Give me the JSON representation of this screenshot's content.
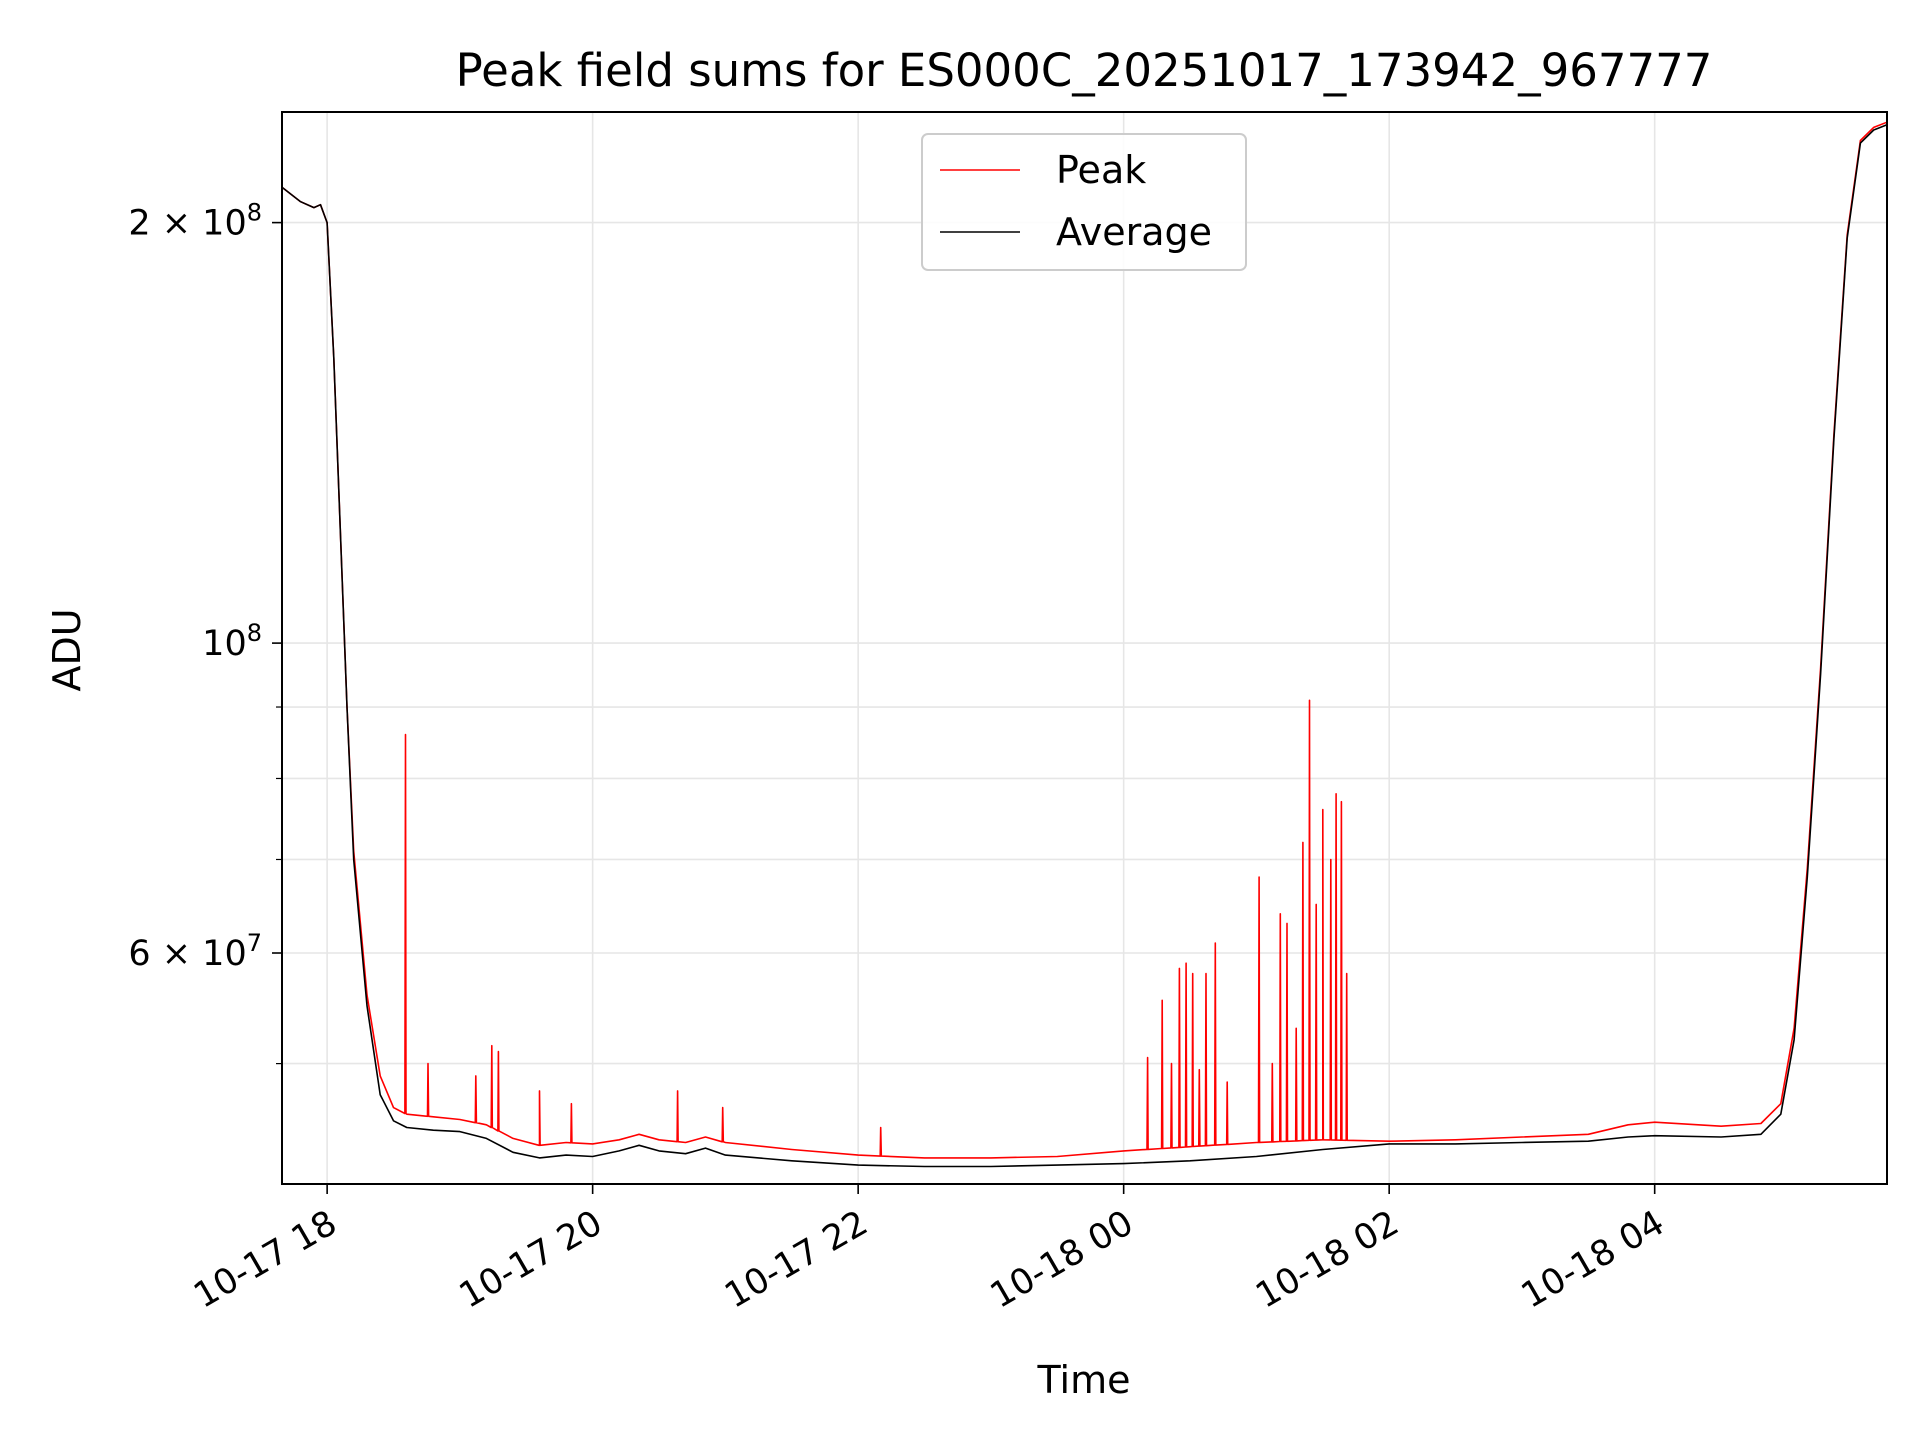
{
  "chart_data": {
    "type": "line",
    "title": "Peak field sums for ES000C_20251017_173942_967777",
    "xlabel": "Time",
    "ylabel": "ADU",
    "yscale": "log",
    "grid": true,
    "legend_position": "upper center",
    "x_unit": "hours since 2025-10-17 00:00",
    "xlim": [
      17.66,
      29.75
    ],
    "ylim": [
      41000000,
      240000000
    ],
    "x_ticks": [
      {
        "value": 18,
        "label": "10-17 18"
      },
      {
        "value": 20,
        "label": "10-17 20"
      },
      {
        "value": 22,
        "label": "10-17 22"
      },
      {
        "value": 24,
        "label": "10-18 00"
      },
      {
        "value": 26,
        "label": "10-18 02"
      },
      {
        "value": 28,
        "label": "10-18 04"
      }
    ],
    "y_major_ticks": [
      {
        "value": 60000000,
        "label": "6 × 10⁷",
        "mantissa": "6 × 10",
        "exp": "7"
      },
      {
        "value": 100000000,
        "label": "10⁸",
        "mantissa": "10",
        "exp": "8"
      },
      {
        "value": 200000000,
        "label": "2 × 10⁸",
        "mantissa": "2 × 10",
        "exp": "8"
      }
    ],
    "y_minor_ticks": [
      50000000,
      70000000,
      80000000,
      90000000
    ],
    "series": [
      {
        "name": "Average",
        "color": "#000000",
        "x": [
          17.66,
          17.8,
          17.9,
          17.95,
          18.0,
          18.05,
          18.1,
          18.15,
          18.2,
          18.3,
          18.4,
          18.5,
          18.6,
          18.8,
          19.0,
          19.2,
          19.4,
          19.6,
          19.8,
          20.0,
          20.2,
          20.35,
          20.5,
          20.7,
          20.85,
          21.0,
          21.5,
          22.0,
          22.5,
          23.0,
          23.5,
          24.0,
          24.5,
          25.0,
          25.5,
          26.0,
          26.5,
          27.0,
          27.5,
          27.8,
          28.0,
          28.5,
          28.8,
          28.95,
          29.05,
          29.15,
          29.25,
          29.35,
          29.45,
          29.55,
          29.65,
          29.75
        ],
        "y": [
          212000000,
          207000000,
          205000000,
          206000000,
          200000000,
          160000000,
          120000000,
          90000000,
          70000000,
          55000000,
          47500000,
          45500000,
          45000000,
          44800000,
          44700000,
          44200000,
          43200000,
          42800000,
          43000000,
          42900000,
          43300000,
          43700000,
          43300000,
          43100000,
          43500000,
          43000000,
          42600000,
          42300000,
          42200000,
          42200000,
          42300000,
          42400000,
          42600000,
          42900000,
          43400000,
          43800000,
          43800000,
          43900000,
          44000000,
          44300000,
          44400000,
          44300000,
          44500000,
          46000000,
          52000000,
          68000000,
          95000000,
          140000000,
          195000000,
          228000000,
          233000000,
          235000000
        ]
      },
      {
        "name": "Peak",
        "color": "#ff0000",
        "x": [
          17.66,
          17.8,
          17.9,
          17.95,
          18.0,
          18.05,
          18.1,
          18.15,
          18.2,
          18.3,
          18.4,
          18.5,
          18.6,
          18.8,
          19.0,
          19.2,
          19.4,
          19.6,
          19.8,
          20.0,
          20.2,
          20.35,
          20.5,
          20.7,
          20.85,
          21.0,
          21.5,
          22.0,
          22.5,
          23.0,
          23.5,
          24.0,
          24.5,
          25.0,
          25.5,
          26.0,
          26.5,
          27.0,
          27.5,
          27.8,
          28.0,
          28.5,
          28.8,
          28.95,
          29.05,
          29.15,
          29.25,
          29.35,
          29.45,
          29.55,
          29.65,
          29.75
        ],
        "y": [
          212000000,
          207000000,
          205000000,
          206000000,
          200000000,
          160000000,
          120000000,
          90000000,
          71000000,
          56000000,
          49000000,
          46500000,
          46000000,
          45800000,
          45600000,
          45200000,
          44200000,
          43700000,
          43900000,
          43800000,
          44100000,
          44500000,
          44100000,
          43900000,
          44300000,
          43900000,
          43400000,
          43000000,
          42800000,
          42800000,
          42900000,
          43300000,
          43600000,
          43900000,
          44100000,
          44000000,
          44100000,
          44300000,
          44500000,
          45200000,
          45400000,
          45100000,
          45300000,
          46800000,
          53000000,
          69000000,
          96000000,
          141000000,
          196000000,
          229000000,
          234000000,
          236000000
        ]
      }
    ],
    "peak_spikes": [
      {
        "x": 18.59,
        "y": 86000000
      },
      {
        "x": 18.76,
        "y": 50000000
      },
      {
        "x": 19.12,
        "y": 49000000
      },
      {
        "x": 19.24,
        "y": 51500000
      },
      {
        "x": 19.29,
        "y": 51000000
      },
      {
        "x": 19.6,
        "y": 47800000
      },
      {
        "x": 19.84,
        "y": 46800000
      },
      {
        "x": 20.64,
        "y": 47800000
      },
      {
        "x": 20.98,
        "y": 46500000
      },
      {
        "x": 22.17,
        "y": 45000000
      },
      {
        "x": 24.18,
        "y": 50500000
      },
      {
        "x": 24.29,
        "y": 55500000
      },
      {
        "x": 24.36,
        "y": 50000000
      },
      {
        "x": 24.42,
        "y": 58500000
      },
      {
        "x": 24.47,
        "y": 59000000
      },
      {
        "x": 24.52,
        "y": 58000000
      },
      {
        "x": 24.57,
        "y": 49500000
      },
      {
        "x": 24.62,
        "y": 58000000
      },
      {
        "x": 24.69,
        "y": 61000000
      },
      {
        "x": 24.78,
        "y": 48500000
      },
      {
        "x": 25.02,
        "y": 68000000
      },
      {
        "x": 25.12,
        "y": 50000000
      },
      {
        "x": 25.18,
        "y": 64000000
      },
      {
        "x": 25.23,
        "y": 63000000
      },
      {
        "x": 25.3,
        "y": 53000000
      },
      {
        "x": 25.35,
        "y": 72000000
      },
      {
        "x": 25.4,
        "y": 91000000
      },
      {
        "x": 25.45,
        "y": 65000000
      },
      {
        "x": 25.5,
        "y": 76000000
      },
      {
        "x": 25.56,
        "y": 70000000
      },
      {
        "x": 25.6,
        "y": 78000000
      },
      {
        "x": 25.64,
        "y": 77000000
      },
      {
        "x": 25.68,
        "y": 58000000
      }
    ]
  },
  "legend": {
    "peak_label": "Peak",
    "average_label": "Average"
  }
}
